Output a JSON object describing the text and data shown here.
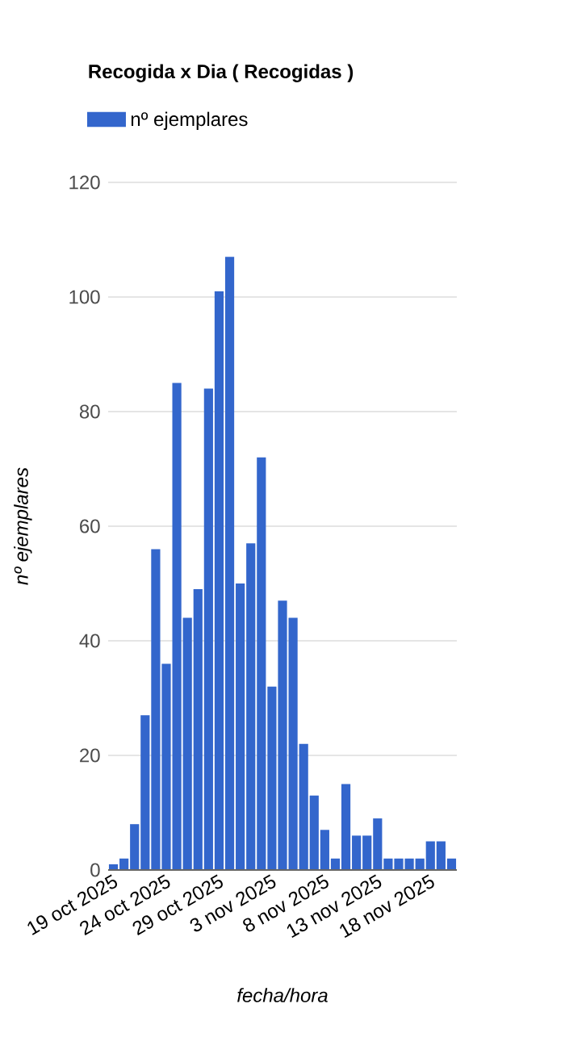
{
  "chart_data": {
    "type": "bar",
    "title": "Recogida x Dia ( Recogidas )",
    "xlabel": "fecha/hora",
    "ylabel": "nº ejemplares",
    "categories": [
      "19 oct 2025",
      null,
      null,
      null,
      null,
      "24 oct 2025",
      null,
      null,
      null,
      null,
      "29 oct 2025",
      null,
      null,
      null,
      null,
      "3 nov 2025",
      null,
      null,
      null,
      null,
      "8 nov 2025",
      null,
      null,
      null,
      null,
      "13 nov 2025",
      null,
      null,
      null,
      null,
      "18 nov 2025",
      null,
      null
    ],
    "series": [
      {
        "name": "nº ejemplares",
        "color": "#3366cc",
        "values": [
          1,
          2,
          8,
          27,
          56,
          36,
          85,
          44,
          49,
          84,
          101,
          107,
          50,
          57,
          72,
          32,
          47,
          44,
          22,
          13,
          7,
          2,
          15,
          6,
          6,
          9,
          2,
          2,
          2,
          2,
          5,
          5,
          2
        ]
      }
    ],
    "ylim": [
      0,
      120
    ],
    "yticks": [
      0,
      20,
      40,
      60,
      80,
      100,
      120
    ],
    "grid": "y",
    "legend": "top left"
  }
}
